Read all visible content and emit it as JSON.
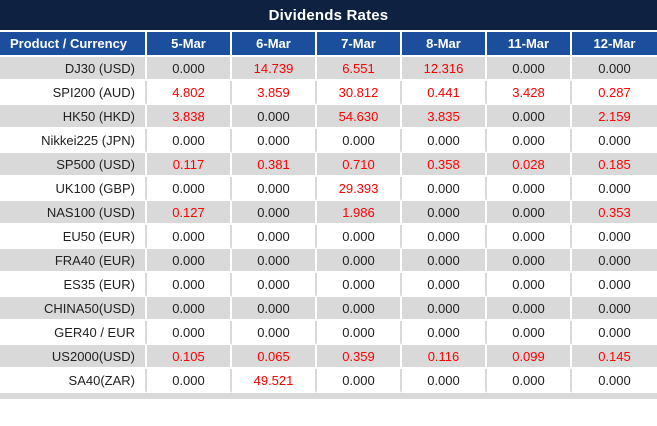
{
  "title": "Dividends Rates",
  "colors": {
    "title_bar_bg": "#0f2140",
    "header_bg": "#1b4f9e",
    "row_alt_bg": "#d9d9d9",
    "row_bg": "#ffffff",
    "value_red": "#ff0000",
    "text_dark": "#212121"
  },
  "chart_data": {
    "type": "table",
    "title": "Dividends Rates",
    "columns": [
      "Product / Currency",
      "5-Mar",
      "6-Mar",
      "7-Mar",
      "8-Mar",
      "11-Mar",
      "12-Mar"
    ],
    "rows": [
      {
        "product": "DJ30 (USD)",
        "values": [
          "0.000",
          "14.739",
          "6.551",
          "12.316",
          "0.000",
          "0.000"
        ]
      },
      {
        "product": "SPI200 (AUD)",
        "values": [
          "4.802",
          "3.859",
          "30.812",
          "0.441",
          "3.428",
          "0.287"
        ]
      },
      {
        "product": "HK50 (HKD)",
        "values": [
          "3.838",
          "0.000",
          "54.630",
          "3.835",
          "0.000",
          "2.159"
        ]
      },
      {
        "product": "Nikkei225 (JPN)",
        "values": [
          "0.000",
          "0.000",
          "0.000",
          "0.000",
          "0.000",
          "0.000"
        ]
      },
      {
        "product": "SP500 (USD)",
        "values": [
          "0.117",
          "0.381",
          "0.710",
          "0.358",
          "0.028",
          "0.185"
        ]
      },
      {
        "product": "UK100 (GBP)",
        "values": [
          "0.000",
          "0.000",
          "29.393",
          "0.000",
          "0.000",
          "0.000"
        ]
      },
      {
        "product": "NAS100 (USD)",
        "values": [
          "0.127",
          "0.000",
          "1.986",
          "0.000",
          "0.000",
          "0.353"
        ]
      },
      {
        "product": "EU50 (EUR)",
        "values": [
          "0.000",
          "0.000",
          "0.000",
          "0.000",
          "0.000",
          "0.000"
        ]
      },
      {
        "product": "FRA40 (EUR)",
        "values": [
          "0.000",
          "0.000",
          "0.000",
          "0.000",
          "0.000",
          "0.000"
        ]
      },
      {
        "product": "ES35 (EUR)",
        "values": [
          "0.000",
          "0.000",
          "0.000",
          "0.000",
          "0.000",
          "0.000"
        ]
      },
      {
        "product": "CHINA50(USD)",
        "values": [
          "0.000",
          "0.000",
          "0.000",
          "0.000",
          "0.000",
          "0.000"
        ]
      },
      {
        "product": "GER40 / EUR",
        "values": [
          "0.000",
          "0.000",
          "0.000",
          "0.000",
          "0.000",
          "0.000"
        ]
      },
      {
        "product": "US2000(USD)",
        "values": [
          "0.105",
          "0.065",
          "0.359",
          "0.116",
          "0.099",
          "0.145"
        ]
      },
      {
        "product": "SA40(ZAR)",
        "values": [
          "0.000",
          "49.521",
          "0.000",
          "0.000",
          "0.000",
          "0.000"
        ]
      }
    ]
  }
}
